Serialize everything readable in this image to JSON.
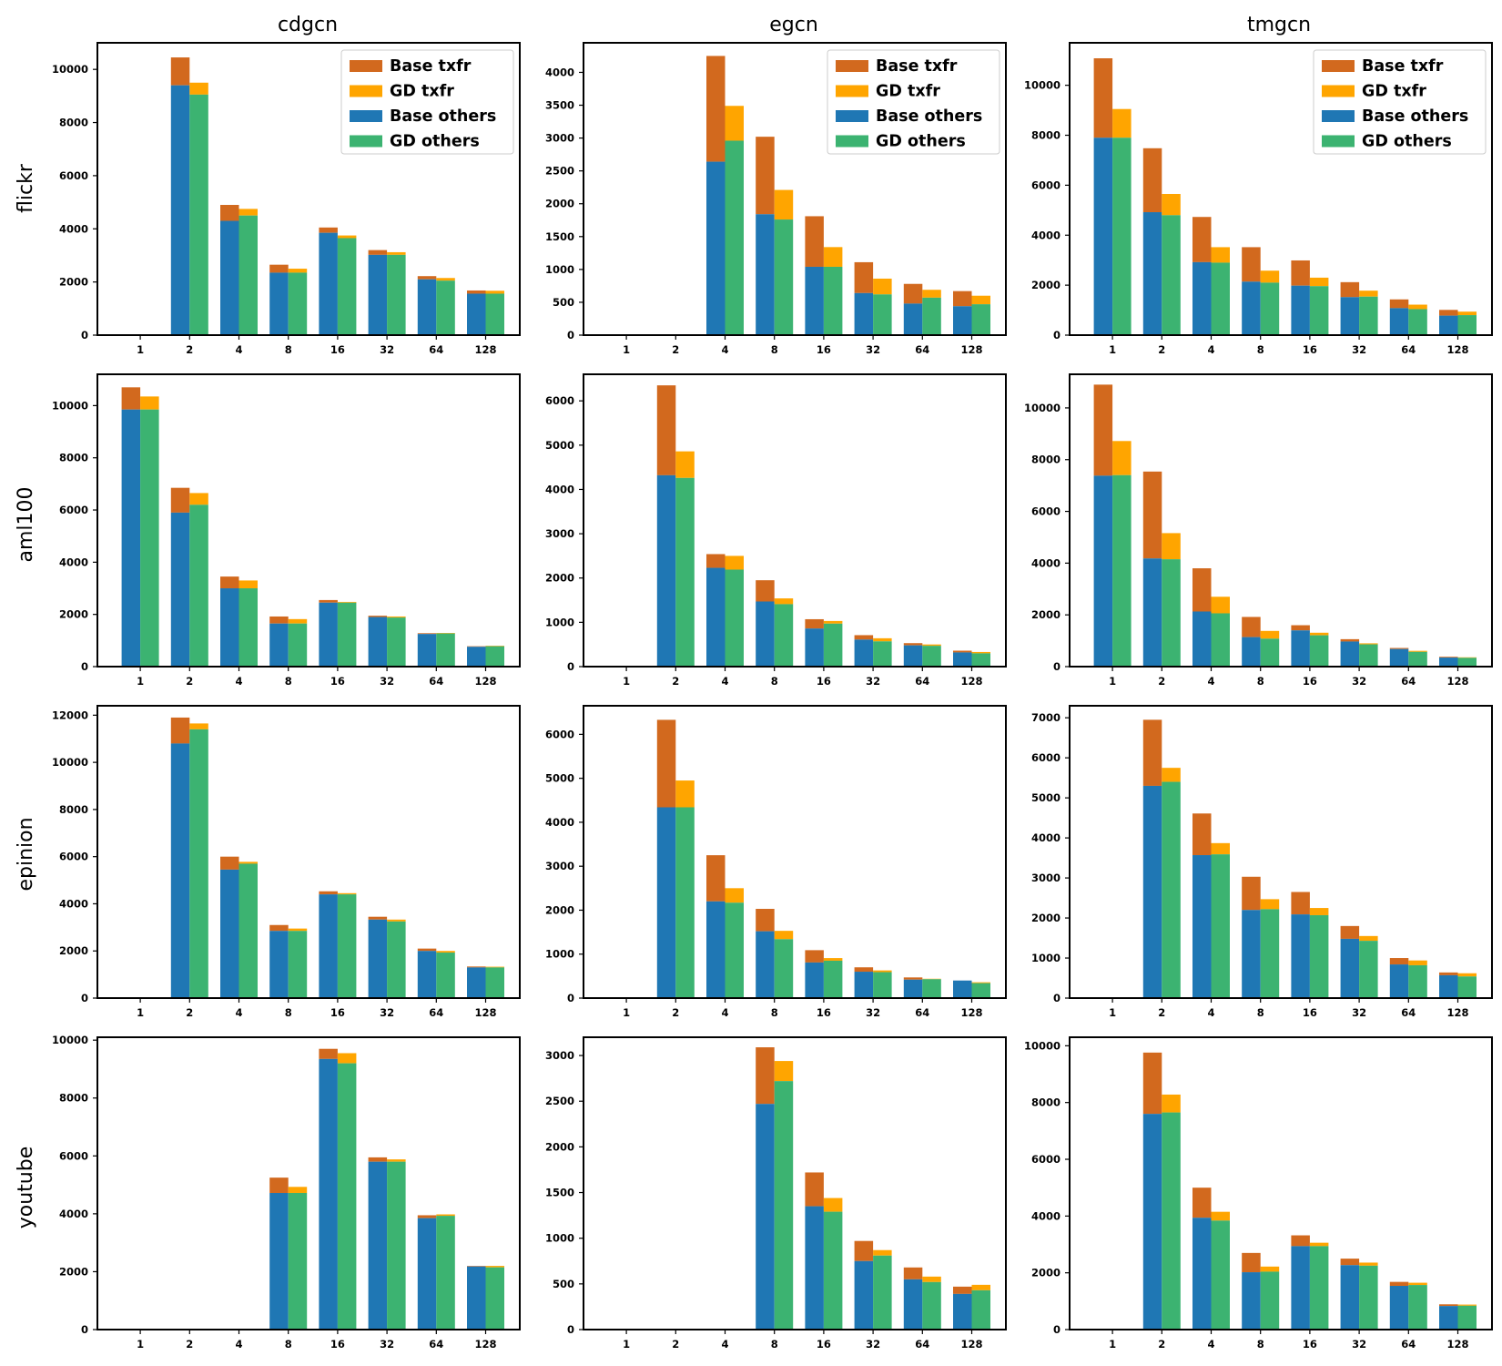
{
  "colors": {
    "base_txfr": "#d2691e",
    "gd_txfr": "#ffa500",
    "base_others": "#1f77b4",
    "gd_others": "#3cb371"
  },
  "legend": {
    "base_txfr": "Base txfr",
    "gd_txfr": "GD txfr",
    "base_others": "Base others",
    "gd_others": "GD others"
  },
  "columns": [
    "cdgcn",
    "egcn",
    "tmgcn"
  ],
  "rows": [
    "flickr",
    "aml100",
    "epinion",
    "youtube"
  ],
  "chart_data": [
    {
      "type": "bar",
      "row": "flickr",
      "col": "cdgcn",
      "legend": true,
      "categories": [
        "1",
        "2",
        "4",
        "8",
        "16",
        "32",
        "64",
        "128"
      ],
      "yticks": [
        0,
        2000,
        4000,
        6000,
        8000,
        10000
      ],
      "ylim": [
        0,
        11000
      ],
      "base_others": [
        0,
        9400,
        4300,
        2350,
        3850,
        3020,
        2100,
        1560
      ],
      "base_total": [
        0,
        10450,
        4900,
        2650,
        4050,
        3200,
        2220,
        1680
      ],
      "gd_others": [
        0,
        9050,
        4500,
        2350,
        3650,
        3020,
        2050,
        1560
      ],
      "gd_total": [
        0,
        9500,
        4750,
        2500,
        3750,
        3120,
        2150,
        1670
      ]
    },
    {
      "type": "bar",
      "row": "flickr",
      "col": "egcn",
      "legend": true,
      "categories": [
        "1",
        "2",
        "4",
        "8",
        "16",
        "32",
        "64",
        "128"
      ],
      "yticks": [
        0,
        500,
        1000,
        1500,
        2000,
        2500,
        3000,
        3500,
        4000
      ],
      "ylim": [
        0,
        4450
      ],
      "base_others": [
        0,
        0,
        2640,
        1840,
        1040,
        640,
        480,
        440
      ],
      "base_total": [
        0,
        0,
        4250,
        3020,
        1810,
        1110,
        780,
        670
      ],
      "gd_others": [
        0,
        0,
        2960,
        1760,
        1040,
        620,
        570,
        470
      ],
      "gd_total": [
        0,
        0,
        3490,
        2210,
        1340,
        860,
        690,
        600
      ]
    },
    {
      "type": "bar",
      "row": "flickr",
      "col": "tmgcn",
      "legend": true,
      "categories": [
        "1",
        "2",
        "4",
        "8",
        "16",
        "32",
        "64",
        "128"
      ],
      "yticks": [
        0,
        2000,
        4000,
        6000,
        8000,
        10000
      ],
      "ylim": [
        0,
        11700
      ],
      "base_others": [
        7900,
        4920,
        2920,
        2140,
        1980,
        1520,
        1080,
        780
      ],
      "base_total": [
        11080,
        7480,
        4730,
        3520,
        2990,
        2120,
        1430,
        1010
      ],
      "gd_others": [
        7900,
        4800,
        2900,
        2100,
        1960,
        1540,
        1040,
        800
      ],
      "gd_total": [
        9050,
        5650,
        3520,
        2580,
        2300,
        1780,
        1220,
        940
      ]
    },
    {
      "type": "bar",
      "row": "aml100",
      "col": "cdgcn",
      "legend": false,
      "categories": [
        "1",
        "2",
        "4",
        "8",
        "16",
        "32",
        "64",
        "128"
      ],
      "yticks": [
        0,
        2000,
        4000,
        6000,
        8000,
        10000
      ],
      "ylim": [
        0,
        11200
      ],
      "base_others": [
        9850,
        5900,
        3000,
        1650,
        2450,
        1900,
        1250,
        760
      ],
      "base_total": [
        10700,
        6850,
        3450,
        1920,
        2550,
        1950,
        1280,
        780
      ],
      "gd_others": [
        9850,
        6200,
        3000,
        1650,
        2450,
        1880,
        1270,
        780
      ],
      "gd_total": [
        10350,
        6650,
        3300,
        1820,
        2480,
        1920,
        1290,
        800
      ]
    },
    {
      "type": "bar",
      "row": "aml100",
      "col": "egcn",
      "legend": false,
      "categories": [
        "1",
        "2",
        "4",
        "8",
        "16",
        "32",
        "64",
        "128"
      ],
      "yticks": [
        0,
        1000,
        2000,
        3000,
        4000,
        5000,
        6000
      ],
      "ylim": [
        0,
        6600
      ],
      "base_others": [
        0,
        4320,
        2230,
        1470,
        860,
        610,
        480,
        320
      ],
      "base_total": [
        0,
        6350,
        2540,
        1950,
        1070,
        710,
        530,
        360
      ],
      "gd_others": [
        0,
        4260,
        2190,
        1410,
        970,
        570,
        470,
        300
      ],
      "gd_total": [
        0,
        4860,
        2500,
        1540,
        1030,
        640,
        500,
        330
      ]
    },
    {
      "type": "bar",
      "row": "aml100",
      "col": "tmgcn",
      "legend": false,
      "categories": [
        "1",
        "2",
        "4",
        "8",
        "16",
        "32",
        "64",
        "128"
      ],
      "yticks": [
        0,
        2000,
        4000,
        6000,
        8000,
        10000
      ],
      "ylim": [
        0,
        11300
      ],
      "base_others": [
        7380,
        4180,
        2130,
        1140,
        1400,
        970,
        680,
        350
      ],
      "base_total": [
        10900,
        7540,
        3800,
        1920,
        1600,
        1060,
        720,
        380
      ],
      "gd_others": [
        7400,
        4150,
        2060,
        1080,
        1210,
        860,
        570,
        340
      ],
      "gd_total": [
        8720,
        5160,
        2700,
        1380,
        1310,
        900,
        610,
        360
      ]
    },
    {
      "type": "bar",
      "row": "epinion",
      "col": "cdgcn",
      "legend": false,
      "categories": [
        "1",
        "2",
        "4",
        "8",
        "16",
        "32",
        "64",
        "128"
      ],
      "yticks": [
        0,
        2000,
        4000,
        6000,
        8000,
        10000,
        12000
      ],
      "ylim": [
        0,
        12400
      ],
      "base_others": [
        0,
        10800,
        5450,
        2850,
        4400,
        3330,
        2000,
        1300
      ],
      "base_total": [
        0,
        11900,
        6000,
        3100,
        4530,
        3450,
        2100,
        1340
      ],
      "gd_others": [
        0,
        11400,
        5700,
        2850,
        4400,
        3250,
        1930,
        1300
      ],
      "gd_total": [
        0,
        11650,
        5780,
        2950,
        4450,
        3330,
        2000,
        1330
      ]
    },
    {
      "type": "bar",
      "row": "epinion",
      "col": "egcn",
      "legend": false,
      "categories": [
        "1",
        "2",
        "4",
        "8",
        "16",
        "32",
        "64",
        "128"
      ],
      "yticks": [
        0,
        1000,
        2000,
        3000,
        4000,
        5000,
        6000
      ],
      "ylim": [
        0,
        6650
      ],
      "base_others": [
        0,
        4340,
        2200,
        1520,
        810,
        600,
        420,
        400
      ],
      "base_total": [
        0,
        6330,
        3250,
        2030,
        1090,
        700,
        470,
        400
      ],
      "gd_others": [
        0,
        4340,
        2170,
        1340,
        850,
        590,
        430,
        340
      ],
      "gd_total": [
        0,
        4950,
        2500,
        1530,
        910,
        630,
        440,
        360
      ]
    },
    {
      "type": "bar",
      "row": "epinion",
      "col": "tmgcn",
      "legend": false,
      "categories": [
        "1",
        "2",
        "4",
        "8",
        "16",
        "32",
        "64",
        "128"
      ],
      "yticks": [
        0,
        1000,
        2000,
        3000,
        4000,
        5000,
        6000,
        7000
      ],
      "ylim": [
        0,
        7300
      ],
      "base_others": [
        0,
        5300,
        3570,
        2200,
        2090,
        1480,
        840,
        570
      ],
      "base_total": [
        0,
        6950,
        4610,
        3030,
        2650,
        1800,
        1000,
        640
      ],
      "gd_others": [
        0,
        5400,
        3590,
        2220,
        2070,
        1430,
        820,
        540
      ],
      "gd_total": [
        0,
        5750,
        3870,
        2470,
        2250,
        1550,
        940,
        620
      ]
    },
    {
      "type": "bar",
      "row": "youtube",
      "col": "cdgcn",
      "legend": false,
      "categories": [
        "1",
        "2",
        "4",
        "8",
        "16",
        "32",
        "64",
        "128"
      ],
      "yticks": [
        0,
        2000,
        4000,
        6000,
        8000,
        10000
      ],
      "ylim": [
        0,
        10100
      ],
      "base_others": [
        0,
        0,
        0,
        4720,
        9350,
        5800,
        3850,
        2180
      ],
      "base_total": [
        0,
        0,
        0,
        5250,
        9700,
        5950,
        3950,
        2200
      ],
      "gd_others": [
        0,
        0,
        0,
        4720,
        9200,
        5800,
        3930,
        2150
      ],
      "gd_total": [
        0,
        0,
        0,
        4930,
        9550,
        5880,
        3980,
        2200
      ]
    },
    {
      "type": "bar",
      "row": "youtube",
      "col": "egcn",
      "legend": false,
      "categories": [
        "1",
        "2",
        "4",
        "8",
        "16",
        "32",
        "64",
        "128"
      ],
      "yticks": [
        0,
        500,
        1000,
        1500,
        2000,
        2500,
        3000
      ],
      "ylim": [
        0,
        3200
      ],
      "base_others": [
        0,
        0,
        0,
        2470,
        1350,
        750,
        550,
        390
      ],
      "base_total": [
        0,
        0,
        0,
        3090,
        1720,
        970,
        680,
        470
      ],
      "gd_others": [
        0,
        0,
        0,
        2720,
        1290,
        810,
        520,
        430
      ],
      "gd_total": [
        0,
        0,
        0,
        2940,
        1440,
        870,
        580,
        490
      ]
    },
    {
      "type": "bar",
      "row": "youtube",
      "col": "tmgcn",
      "legend": false,
      "categories": [
        "1",
        "2",
        "4",
        "8",
        "16",
        "32",
        "64",
        "128"
      ],
      "yticks": [
        0,
        2000,
        4000,
        6000,
        8000,
        10000
      ],
      "ylim": [
        0,
        10300
      ],
      "base_others": [
        0,
        7600,
        3940,
        2020,
        2940,
        2270,
        1540,
        830
      ],
      "base_total": [
        0,
        9760,
        5000,
        2700,
        3320,
        2500,
        1680,
        890
      ],
      "gd_others": [
        0,
        7650,
        3840,
        2040,
        2940,
        2250,
        1570,
        840
      ],
      "gd_total": [
        0,
        8280,
        4150,
        2220,
        3060,
        2360,
        1650,
        880
      ]
    }
  ]
}
